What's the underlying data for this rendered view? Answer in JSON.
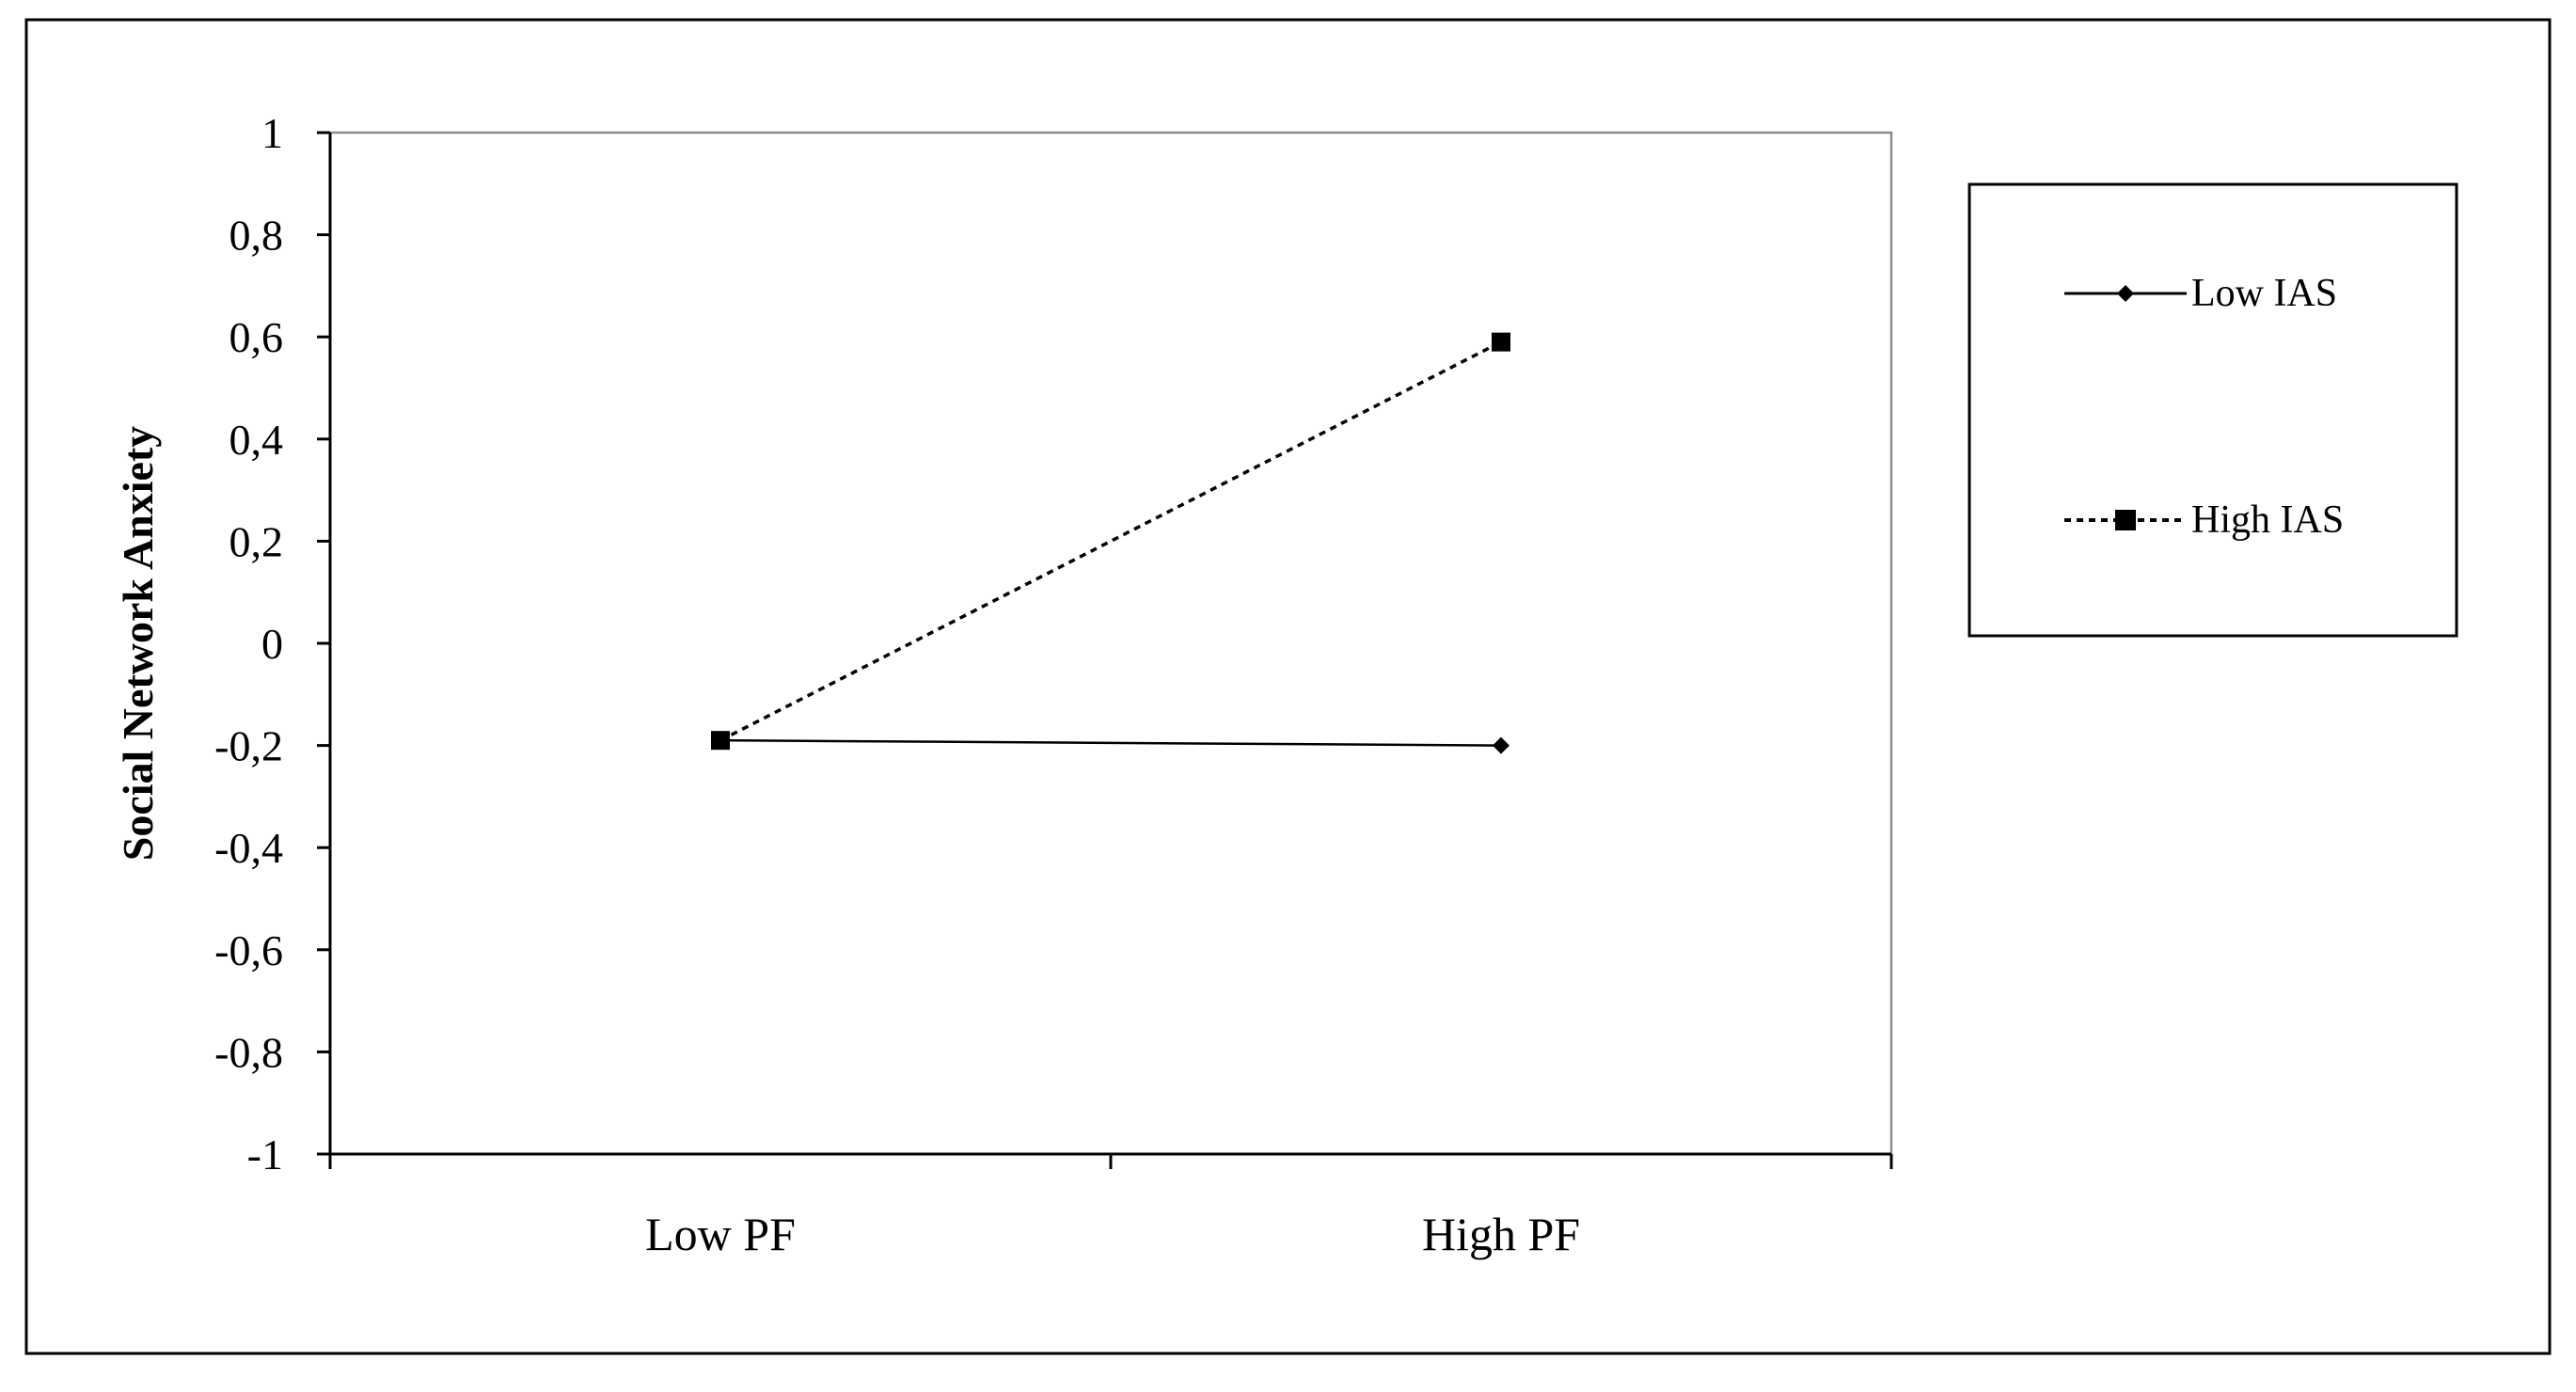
{
  "chart_data": {
    "type": "line",
    "categories": [
      "Low PF",
      "High PF"
    ],
    "series": [
      {
        "name": "Low IAS",
        "values": [
          -0.19,
          -0.2
        ],
        "line_style": "solid",
        "marker": "diamond"
      },
      {
        "name": "High IAS",
        "values": [
          -0.19,
          0.59
        ],
        "line_style": "dotted",
        "marker": "square"
      }
    ],
    "title": "",
    "xlabel": "",
    "ylabel": "Social Network Anxiety",
    "ylim": [
      -1,
      1
    ],
    "yticks": [
      1,
      0.8,
      0.6,
      0.4,
      0.2,
      0,
      -0.2,
      -0.4,
      -0.6,
      -0.8,
      -1
    ],
    "ytick_labels": [
      "1",
      "0,8",
      "0,6",
      "0,4",
      "0,2",
      "0",
      "-0,2",
      "-0,4",
      "-0,6",
      "-0,8",
      "-1"
    ],
    "grid": false,
    "legend_position": "right",
    "colors": {
      "line": "#000000",
      "plot_border": "#8c8c8c"
    }
  }
}
